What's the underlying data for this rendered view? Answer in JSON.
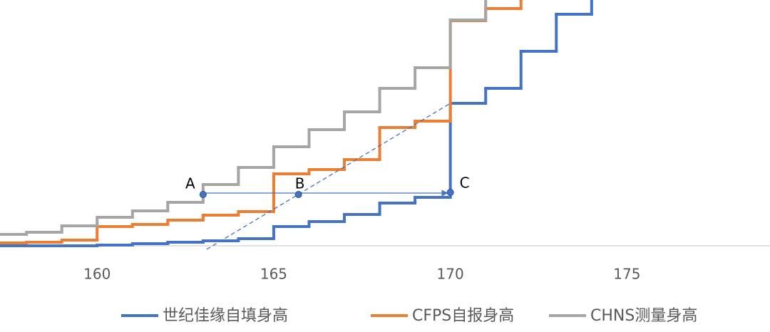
{
  "chart_data": {
    "type": "step",
    "x": [
      157,
      158,
      159,
      160,
      161,
      162,
      163,
      164,
      165,
      166,
      167,
      168,
      169,
      170,
      171,
      172,
      173,
      174
    ],
    "xlim": [
      157.25,
      179.05
    ],
    "xticks": [
      160,
      165,
      170,
      175
    ],
    "ylim": [
      0,
      345
    ],
    "series": [
      {
        "name": "世纪佳缘自填身高",
        "color": "#4472c4",
        "values": [
          0,
          0,
          0,
          1,
          3,
          5,
          7,
          10,
          27,
          34,
          44,
          60,
          68,
          200,
          221,
          273,
          325,
          null
        ]
      },
      {
        "name": "CFPS自报身高",
        "color": "#ed7d31",
        "values": [
          4,
          5,
          8,
          27,
          30,
          36,
          43,
          48,
          101,
          107,
          121,
          166,
          175,
          316,
          333,
          null,
          null,
          null
        ]
      },
      {
        "name": "CHNS测量身高",
        "color": "#a5a5a5",
        "values": [
          16,
          19,
          28,
          40,
          49,
          61,
          86,
          110,
          139,
          163,
          188,
          221,
          250,
          317,
          null,
          null,
          null,
          null
        ]
      }
    ],
    "points": [
      {
        "label": "A",
        "x": 163,
        "y": 72
      },
      {
        "label": "B",
        "x": 165.7,
        "y": 72
      },
      {
        "label": "C",
        "x": 170,
        "y": 75
      }
    ],
    "guide_line": {
      "x": [
        163.1,
        170
      ],
      "y": [
        -5,
        200
      ]
    },
    "legend": "bottom"
  }
}
